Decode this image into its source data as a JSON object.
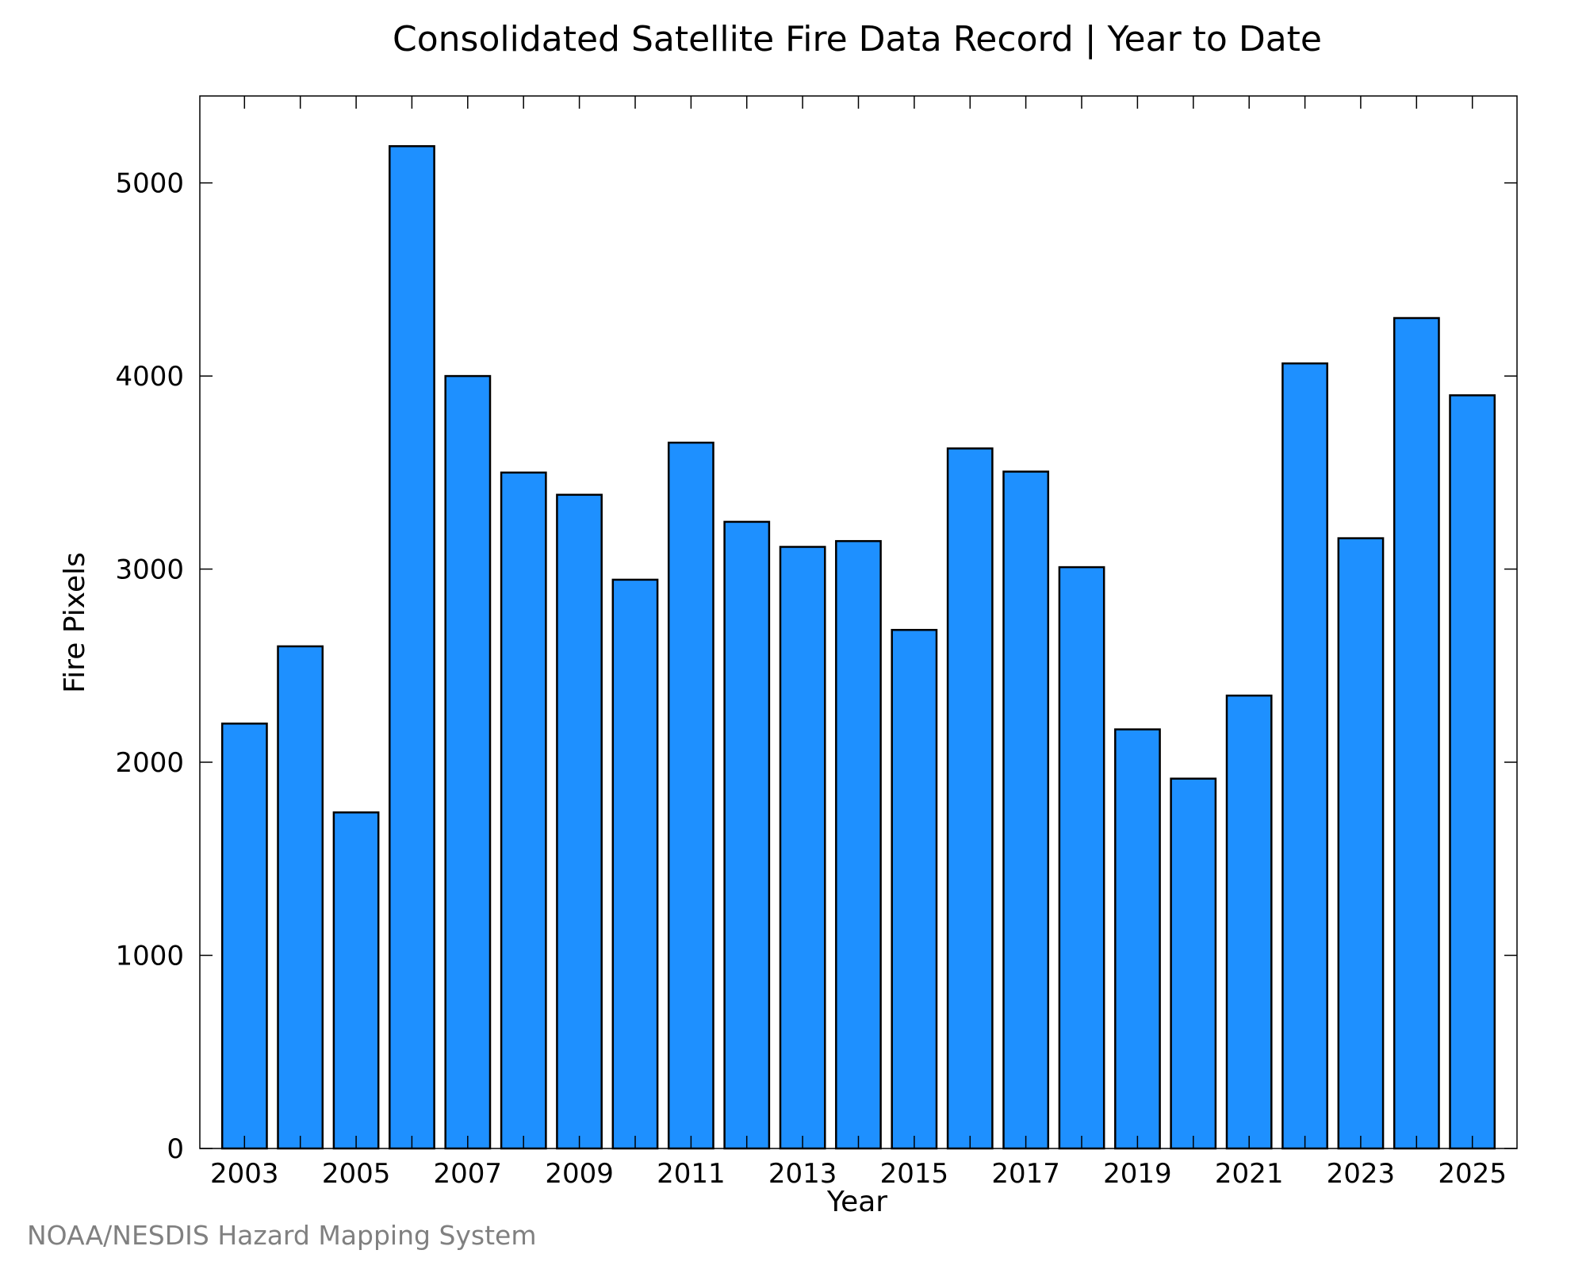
{
  "chart_data": {
    "type": "bar",
    "title": "Consolidated Satellite Fire Data Record | Year to Date",
    "xlabel": "Year",
    "ylabel": "Fire Pixels",
    "categories": [
      "2003",
      "2004",
      "2005",
      "2006",
      "2007",
      "2008",
      "2009",
      "2010",
      "2011",
      "2012",
      "2013",
      "2014",
      "2015",
      "2016",
      "2017",
      "2018",
      "2019",
      "2020",
      "2021",
      "2022",
      "2023",
      "2024",
      "2025"
    ],
    "values": [
      2200,
      2600,
      1740,
      5190,
      4000,
      3500,
      3385,
      2945,
      3655,
      3245,
      3115,
      3145,
      2685,
      3625,
      3505,
      3010,
      2170,
      1915,
      2345,
      4065,
      3160,
      4300,
      3900
    ],
    "x_tick_labels": [
      "2003",
      "2005",
      "2007",
      "2009",
      "2011",
      "2013",
      "2015",
      "2017",
      "2019",
      "2021",
      "2023",
      "2025"
    ],
    "y_ticks": [
      0,
      1000,
      2000,
      3000,
      4000,
      5000
    ],
    "ylim": [
      0,
      5450
    ],
    "grid": false,
    "legend": "none",
    "bar_color": "#1e90ff",
    "bar_edge_color": "#000000"
  },
  "footer": {
    "credit": "NOAA/NESDIS Hazard Mapping System",
    "credit_color": "#808080"
  }
}
